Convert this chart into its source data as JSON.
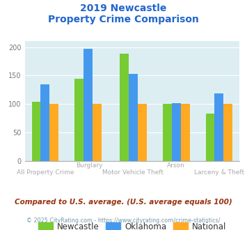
{
  "title_line1": "2019 Newcastle",
  "title_line2": "Property Crime Comparison",
  "categories": [
    "All Property Crime",
    "Burglary",
    "Motor Vehicle Theft",
    "Arson",
    "Larceny & Theft"
  ],
  "newcastle": [
    104,
    145,
    188,
    100,
    83
  ],
  "oklahoma": [
    135,
    197,
    153,
    101,
    119
  ],
  "national": [
    100,
    100,
    100,
    100,
    100
  ],
  "newcastle_color": "#77cc33",
  "oklahoma_color": "#4499ee",
  "national_color": "#ffaa22",
  "bg_color": "#ddeef3",
  "title_color": "#2266cc",
  "label_color": "#aaaaaa",
  "ylim": [
    0,
    210
  ],
  "yticks": [
    0,
    50,
    100,
    150,
    200
  ],
  "legend_labels": [
    "Newcastle",
    "Oklahoma",
    "National"
  ],
  "footnote1": "Compared to U.S. average. (U.S. average equals 100)",
  "footnote2": "© 2025 CityRating.com - https://www.cityrating.com/crime-statistics/",
  "footnote1_color": "#993311",
  "footnote2_color": "#7799aa",
  "bar_width": 0.22
}
